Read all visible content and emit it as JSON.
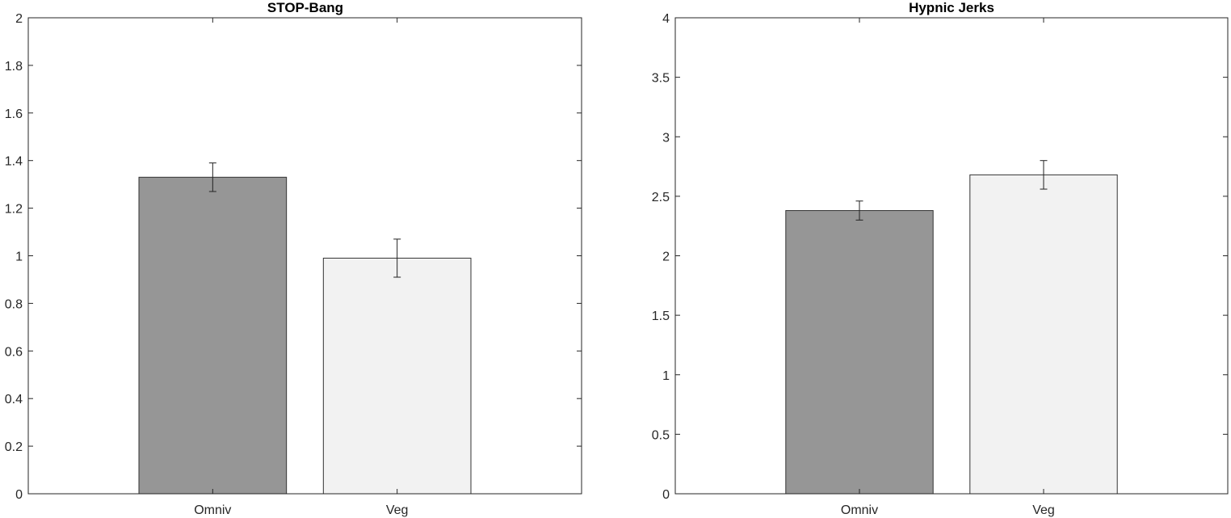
{
  "chart_data": [
    {
      "type": "bar",
      "title": "STOP-Bang",
      "xlabel": "",
      "ylabel": "",
      "categories": [
        "Omniv",
        "Veg"
      ],
      "values": [
        1.33,
        0.99
      ],
      "error": [
        0.06,
        0.08
      ],
      "bar_colors": [
        "#969696",
        "#f2f2f2"
      ],
      "ylim": [
        0,
        2
      ],
      "yticks": [
        "0",
        "0.2",
        "0.4",
        "0.6",
        "0.8",
        "1",
        "1.2",
        "1.4",
        "1.6",
        "1.8",
        "2"
      ],
      "grid": false,
      "legend": "none"
    },
    {
      "type": "bar",
      "title": "Hypnic Jerks",
      "xlabel": "",
      "ylabel": "",
      "categories": [
        "Omniv",
        "Veg"
      ],
      "values": [
        2.38,
        2.68
      ],
      "error": [
        0.08,
        0.12
      ],
      "bar_colors": [
        "#969696",
        "#f2f2f2"
      ],
      "ylim": [
        0,
        4
      ],
      "yticks": [
        "0",
        "0.5",
        "1",
        "1.5",
        "2",
        "2.5",
        "3",
        "3.5",
        "4"
      ],
      "grid": false,
      "legend": "none"
    }
  ]
}
